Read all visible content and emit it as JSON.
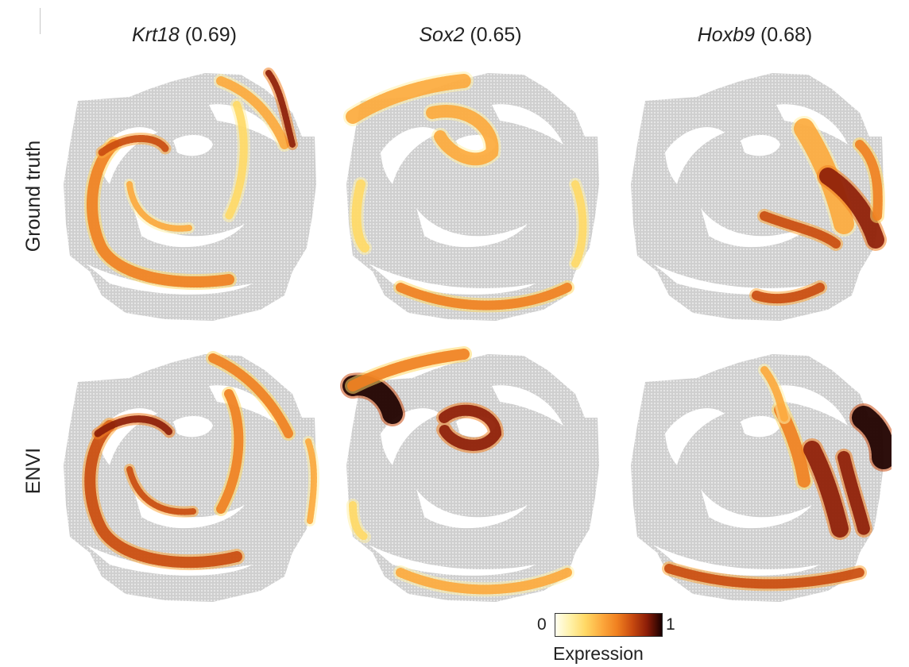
{
  "columns": [
    {
      "gene": "Krt18",
      "score": "(0.69)"
    },
    {
      "gene": "Sox2",
      "score": "(0.65)"
    },
    {
      "gene": "Hoxb9",
      "score": "(0.68)"
    }
  ],
  "rows": [
    {
      "label": "Ground truth"
    },
    {
      "label": "ENVI"
    }
  ],
  "colorbar": {
    "min_label": "0",
    "max_label": "1",
    "label": "Expression",
    "colors": [
      "#fffff0",
      "#fff1a8",
      "#ffd966",
      "#fca83c",
      "#f08020",
      "#c94b10",
      "#8c1d08",
      "#1a0000"
    ]
  },
  "background_spot_color": "#cfcfcf"
}
